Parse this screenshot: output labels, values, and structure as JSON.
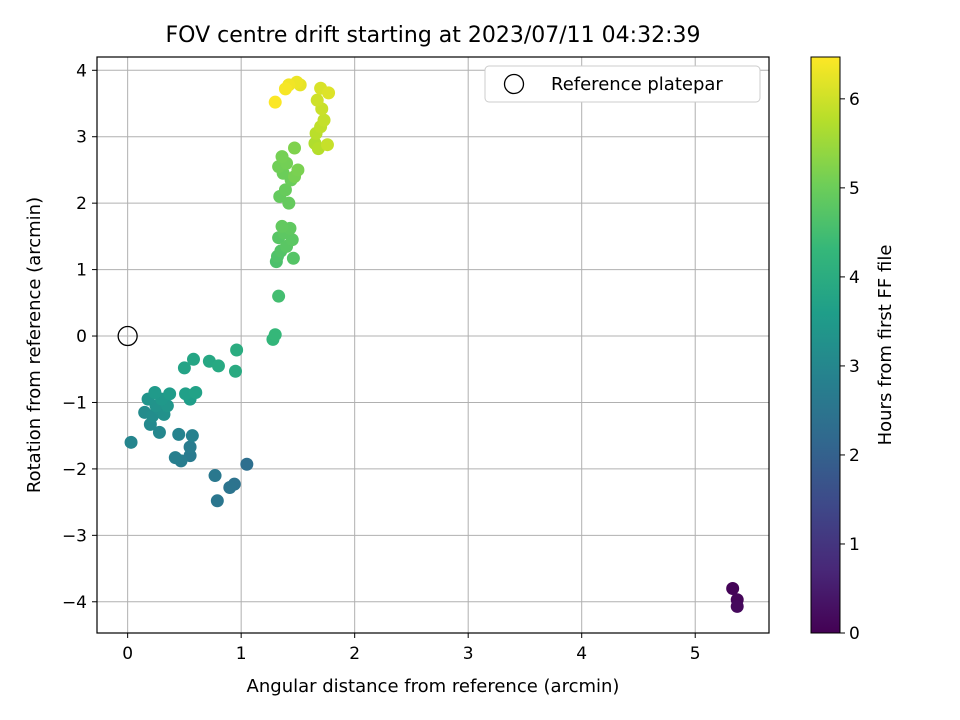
{
  "chart_data": {
    "type": "scatter",
    "title": "FOV centre drift starting at 2023/07/11 04:32:39",
    "xlabel": "Angular distance from reference (arcmin)",
    "ylabel": "Rotation from reference (arcmin)",
    "xlim": [
      -0.27,
      5.65
    ],
    "ylim": [
      -4.47,
      4.2
    ],
    "xticks": [
      0,
      1,
      2,
      3,
      4,
      5
    ],
    "yticks": [
      -4,
      -3,
      -2,
      -1,
      0,
      1,
      2,
      3,
      4
    ],
    "xtick_labels": [
      "0",
      "1",
      "2",
      "3",
      "4",
      "5"
    ],
    "ytick_labels": [
      "−4",
      "−3",
      "−2",
      "−1",
      "0",
      "1",
      "2",
      "3",
      "4"
    ],
    "grid": true,
    "legend": {
      "placement": "top-right",
      "entries": [
        {
          "label": "Reference platepar",
          "marker": "open-circle"
        }
      ]
    },
    "reference_point": {
      "x": 0,
      "y": 0
    },
    "colorbar": {
      "label": "Hours from first FF file",
      "range": [
        0,
        6.47
      ],
      "ticks": [
        0,
        1,
        2,
        3,
        4,
        5,
        6
      ],
      "tick_labels": [
        "0",
        "1",
        "2",
        "3",
        "4",
        "5",
        "6"
      ],
      "colormap": [
        "#440154",
        "#482878",
        "#3e4989",
        "#31688e",
        "#26828e",
        "#1f9e89",
        "#35b779",
        "#6ece58",
        "#b5de2b",
        "#fde725"
      ]
    },
    "points": [
      {
        "x": 5.33,
        "y": -3.8,
        "c": 0.05
      },
      {
        "x": 5.37,
        "y": -3.97,
        "c": 0.1
      },
      {
        "x": 5.37,
        "y": -4.07,
        "c": 0.15
      },
      {
        "x": 1.05,
        "y": -1.93,
        "c": 2.35
      },
      {
        "x": 0.94,
        "y": -2.23,
        "c": 2.45
      },
      {
        "x": 0.9,
        "y": -2.28,
        "c": 2.5
      },
      {
        "x": 0.79,
        "y": -2.48,
        "c": 2.55
      },
      {
        "x": 0.77,
        "y": -2.1,
        "c": 2.6
      },
      {
        "x": 0.55,
        "y": -1.8,
        "c": 2.65
      },
      {
        "x": 0.55,
        "y": -1.67,
        "c": 2.7
      },
      {
        "x": 0.47,
        "y": -1.88,
        "c": 2.75
      },
      {
        "x": 0.42,
        "y": -1.83,
        "c": 2.8
      },
      {
        "x": 0.57,
        "y": -1.5,
        "c": 2.85
      },
      {
        "x": 0.45,
        "y": -1.48,
        "c": 2.9
      },
      {
        "x": 0.03,
        "y": -1.6,
        "c": 2.95
      },
      {
        "x": 0.28,
        "y": -1.45,
        "c": 3.0
      },
      {
        "x": 0.2,
        "y": -1.33,
        "c": 3.05
      },
      {
        "x": 0.15,
        "y": -1.15,
        "c": 3.1
      },
      {
        "x": 0.22,
        "y": -1.2,
        "c": 3.15
      },
      {
        "x": 0.28,
        "y": -1.1,
        "c": 3.2
      },
      {
        "x": 0.32,
        "y": -1.18,
        "c": 3.25
      },
      {
        "x": 0.25,
        "y": -1.05,
        "c": 3.3
      },
      {
        "x": 0.18,
        "y": -0.95,
        "c": 3.35
      },
      {
        "x": 0.35,
        "y": -1.05,
        "c": 3.4
      },
      {
        "x": 0.3,
        "y": -0.95,
        "c": 3.45
      },
      {
        "x": 0.24,
        "y": -0.85,
        "c": 3.5
      },
      {
        "x": 0.37,
        "y": -0.87,
        "c": 3.55
      },
      {
        "x": 0.55,
        "y": -0.95,
        "c": 3.6
      },
      {
        "x": 0.51,
        "y": -0.87,
        "c": 3.65
      },
      {
        "x": 0.6,
        "y": -0.85,
        "c": 3.7
      },
      {
        "x": 0.5,
        "y": -0.48,
        "c": 3.75
      },
      {
        "x": 0.58,
        "y": -0.35,
        "c": 3.8
      },
      {
        "x": 0.72,
        "y": -0.38,
        "c": 3.85
      },
      {
        "x": 0.8,
        "y": -0.45,
        "c": 3.9
      },
      {
        "x": 0.95,
        "y": -0.53,
        "c": 3.95
      },
      {
        "x": 0.96,
        "y": -0.21,
        "c": 4.0
      },
      {
        "x": 1.28,
        "y": -0.05,
        "c": 4.25
      },
      {
        "x": 1.3,
        "y": 0.02,
        "c": 4.3
      },
      {
        "x": 1.33,
        "y": 0.6,
        "c": 4.5
      },
      {
        "x": 1.31,
        "y": 1.12,
        "c": 4.6
      },
      {
        "x": 1.32,
        "y": 1.2,
        "c": 4.65
      },
      {
        "x": 1.35,
        "y": 1.28,
        "c": 4.7
      },
      {
        "x": 1.46,
        "y": 1.17,
        "c": 4.72
      },
      {
        "x": 1.33,
        "y": 1.48,
        "c": 4.75
      },
      {
        "x": 1.4,
        "y": 1.35,
        "c": 4.78
      },
      {
        "x": 1.45,
        "y": 1.45,
        "c": 4.8
      },
      {
        "x": 1.38,
        "y": 1.55,
        "c": 4.82
      },
      {
        "x": 1.43,
        "y": 1.62,
        "c": 4.85
      },
      {
        "x": 1.36,
        "y": 1.65,
        "c": 4.88
      },
      {
        "x": 1.34,
        "y": 2.1,
        "c": 4.9
      },
      {
        "x": 1.42,
        "y": 2.0,
        "c": 4.92
      },
      {
        "x": 1.39,
        "y": 2.2,
        "c": 4.95
      },
      {
        "x": 1.44,
        "y": 2.35,
        "c": 4.98
      },
      {
        "x": 1.37,
        "y": 2.45,
        "c": 5.0
      },
      {
        "x": 1.33,
        "y": 2.55,
        "c": 5.05
      },
      {
        "x": 1.4,
        "y": 2.6,
        "c": 5.08
      },
      {
        "x": 1.36,
        "y": 2.7,
        "c": 5.1
      },
      {
        "x": 1.47,
        "y": 2.4,
        "c": 5.12
      },
      {
        "x": 1.5,
        "y": 2.5,
        "c": 5.15
      },
      {
        "x": 1.47,
        "y": 2.83,
        "c": 5.2
      },
      {
        "x": 1.65,
        "y": 2.9,
        "c": 5.7
      },
      {
        "x": 1.68,
        "y": 2.82,
        "c": 5.75
      },
      {
        "x": 1.66,
        "y": 3.05,
        "c": 5.8
      },
      {
        "x": 1.7,
        "y": 3.15,
        "c": 5.85
      },
      {
        "x": 1.73,
        "y": 3.25,
        "c": 5.9
      },
      {
        "x": 1.76,
        "y": 2.88,
        "c": 5.92
      },
      {
        "x": 1.71,
        "y": 3.42,
        "c": 5.95
      },
      {
        "x": 1.67,
        "y": 3.55,
        "c": 6.0
      },
      {
        "x": 1.7,
        "y": 3.73,
        "c": 6.1
      },
      {
        "x": 1.77,
        "y": 3.66,
        "c": 6.15
      },
      {
        "x": 1.52,
        "y": 3.78,
        "c": 6.25
      },
      {
        "x": 1.49,
        "y": 3.82,
        "c": 6.3
      },
      {
        "x": 1.42,
        "y": 3.78,
        "c": 6.35
      },
      {
        "x": 1.39,
        "y": 3.72,
        "c": 6.4
      },
      {
        "x": 1.3,
        "y": 3.52,
        "c": 6.45
      }
    ]
  }
}
